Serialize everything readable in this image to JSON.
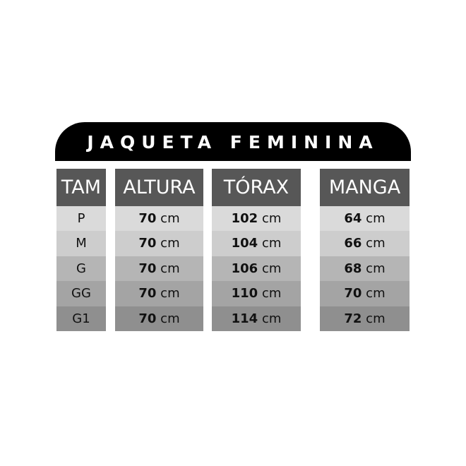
{
  "title": "JAQUETA FEMININA",
  "unit": "cm",
  "headers": [
    "TAM",
    "ALTURA",
    "TÓRAX",
    "MANGA"
  ],
  "rows": [
    {
      "size": "P",
      "altura": "70",
      "torax": "102",
      "manga": "64"
    },
    {
      "size": "M",
      "altura": "70",
      "torax": "104",
      "manga": "66"
    },
    {
      "size": "G",
      "altura": "70",
      "torax": "106",
      "manga": "68"
    },
    {
      "size": "GG",
      "altura": "70",
      "torax": "110",
      "manga": "70"
    },
    {
      "size": "G1",
      "altura": "70",
      "torax": "114",
      "manga": "72"
    }
  ]
}
